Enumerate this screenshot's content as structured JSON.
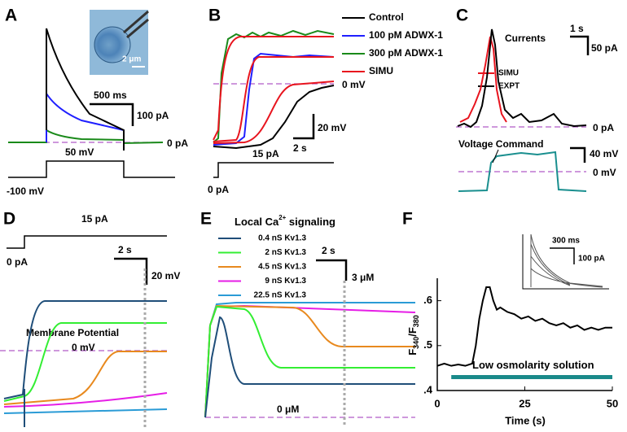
{
  "panels": {
    "A": {
      "label": "A",
      "scale_time": "500 ms",
      "scale_current": "100 pA",
      "zero_current": "0 pA",
      "step_voltage": "50 mV",
      "holding_voltage": "-100 mV",
      "image_scale": "2 μm"
    },
    "B": {
      "label": "B",
      "legend": [
        {
          "name": "Control",
          "color": "#000000"
        },
        {
          "name": "100 pM ADWX-1",
          "color": "#1f1fff"
        },
        {
          "name": "300 pM ADWX-1",
          "color": "#1a8a1a"
        },
        {
          "name": "SIMU",
          "color": "#e8141e"
        }
      ],
      "zero_voltage": "0 mV",
      "scale_voltage": "20 mV",
      "scale_time": "2 s",
      "step_current": "15 pA",
      "zero_current": "0 pA"
    },
    "C": {
      "label": "C",
      "scale_time": "1 s",
      "title": "Currents",
      "scale_current": "50 pA",
      "legend": [
        {
          "name": "SIMU",
          "color": "#e8141e"
        },
        {
          "name": "EXPT",
          "color": "#000000"
        }
      ],
      "zero_current": "0 pA",
      "voltage_title": "Voltage Command",
      "voltage_color": "#1a8f8f",
      "scale_voltage": "40 mV",
      "zero_voltage": "0 mV"
    },
    "D": {
      "label": "D",
      "step_current": "15 pA",
      "zero_current": "0 pA",
      "scale_time": "2 s",
      "scale_voltage": "20 mV",
      "title": "Membrane Potential",
      "zero_voltage": "0 mV"
    },
    "E": {
      "label": "E",
      "title": "Local Ca",
      "title_sup": "2+",
      "title_rest": " signaling",
      "legend": [
        {
          "name": "0.4 nS Kv1.3",
          "color": "#1f4e79"
        },
        {
          "name": "2 nS Kv1.3",
          "color": "#33ee33"
        },
        {
          "name": "4.5 nS Kv1.3",
          "color": "#e8891e"
        },
        {
          "name": "9 nS Kv1.3",
          "color": "#e61ee6"
        },
        {
          "name": "22.5 nS Kv1.3",
          "color": "#2a9bd6"
        }
      ],
      "scale_time": "2 s",
      "scale_conc": "3 μM",
      "zero_conc": "0 μM"
    },
    "F": {
      "label": "F",
      "inset_time": "300 ms",
      "inset_current": "100 pA"
    }
  },
  "chart_data": {
    "type": "line",
    "ylabel": {
      "main": "F",
      "sub1": "340",
      "mid": "/F",
      "sub2": "380"
    },
    "xlabel": "Time (s)",
    "x": [
      0,
      2,
      4,
      6,
      8,
      10,
      11,
      12,
      13,
      14,
      15,
      16,
      17,
      18,
      20,
      22,
      24,
      26,
      28,
      30,
      32,
      34,
      36,
      38,
      40,
      42,
      44,
      46,
      48,
      50
    ],
    "values": [
      0.455,
      0.46,
      0.455,
      0.458,
      0.455,
      0.46,
      0.5,
      0.56,
      0.6,
      0.63,
      0.63,
      0.6,
      0.58,
      0.585,
      0.575,
      0.57,
      0.56,
      0.565,
      0.555,
      0.56,
      0.55,
      0.545,
      0.55,
      0.54,
      0.545,
      0.535,
      0.54,
      0.535,
      0.54,
      0.54
    ],
    "color": "#000000",
    "xlim": [
      0,
      50
    ],
    "ylim": [
      0.4,
      0.65
    ],
    "xticks": [
      0,
      25,
      50
    ],
    "yticks": [
      {
        "value": 0.4,
        "label": ".4"
      },
      {
        "value": 0.5,
        "label": ".5"
      },
      {
        "value": 0.6,
        "label": ".6"
      }
    ],
    "bar": {
      "label": "Low osmolarity solution",
      "start": 4,
      "end": 50,
      "level": 0.43,
      "color": "#1a8a8a"
    }
  }
}
